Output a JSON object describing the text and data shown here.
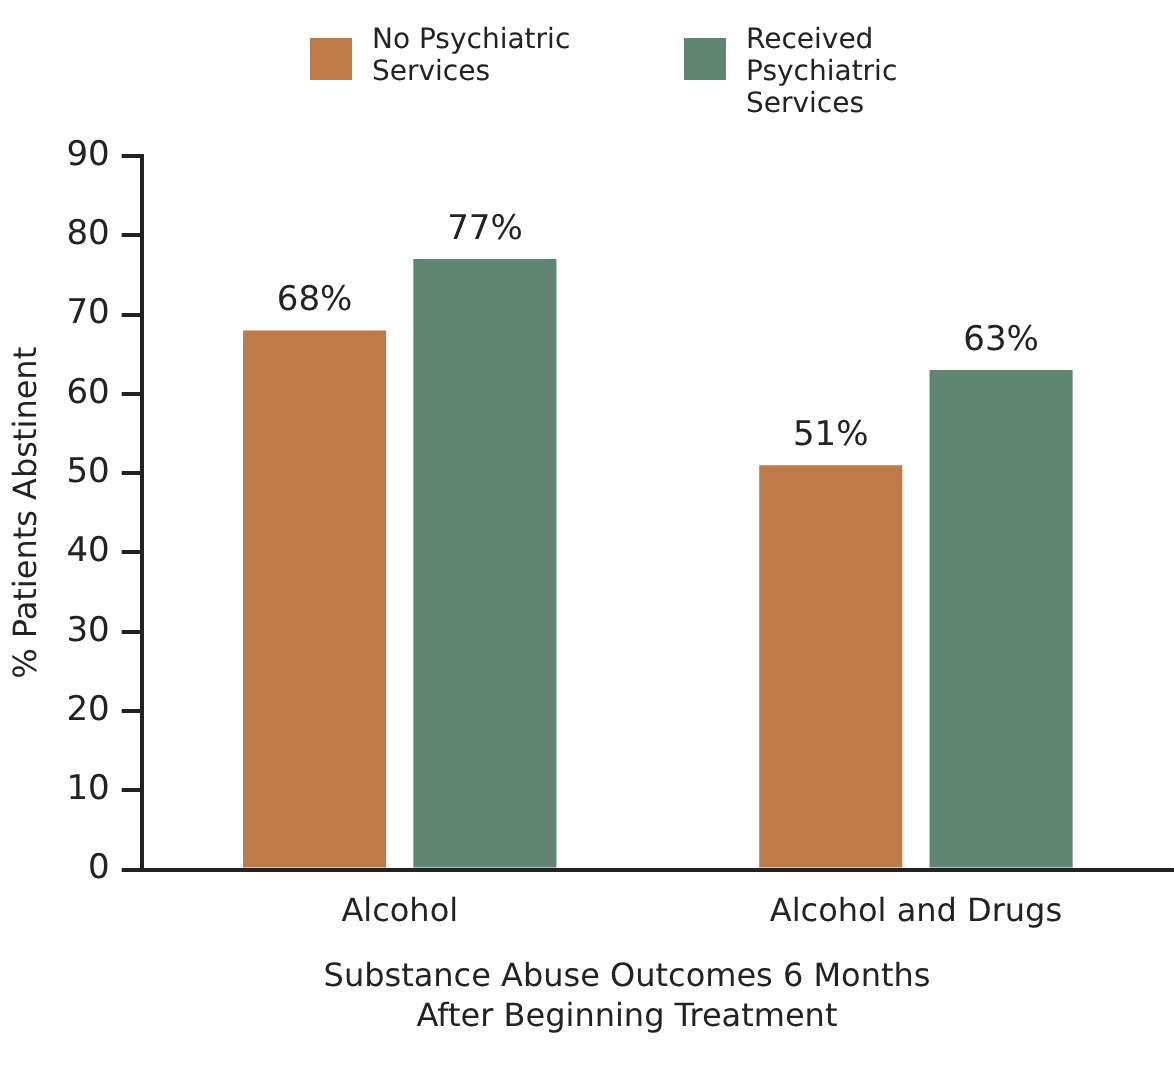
{
  "chart_data": {
    "type": "bar",
    "xlabel": "Substance Abuse Outcomes 6 Months After Beginning Treatment",
    "ylabel": "% Patients Abstinent",
    "categories": [
      "Alcohol",
      "Alcohol and Drugs"
    ],
    "series": [
      {
        "name": "No Psychiatric Services",
        "color": "#bf7a4a",
        "values": [
          68,
          51
        ],
        "value_labels": [
          "68%",
          "51%"
        ]
      },
      {
        "name": "Received Psychiatric Services",
        "color": "#5f8573",
        "values": [
          77,
          63
        ],
        "value_labels": [
          "77%",
          "63%"
        ]
      }
    ],
    "ylim": [
      0,
      90
    ],
    "yticks": [
      0,
      10,
      20,
      30,
      40,
      50,
      60,
      70,
      80,
      90
    ],
    "grid": false,
    "legend": "top"
  }
}
